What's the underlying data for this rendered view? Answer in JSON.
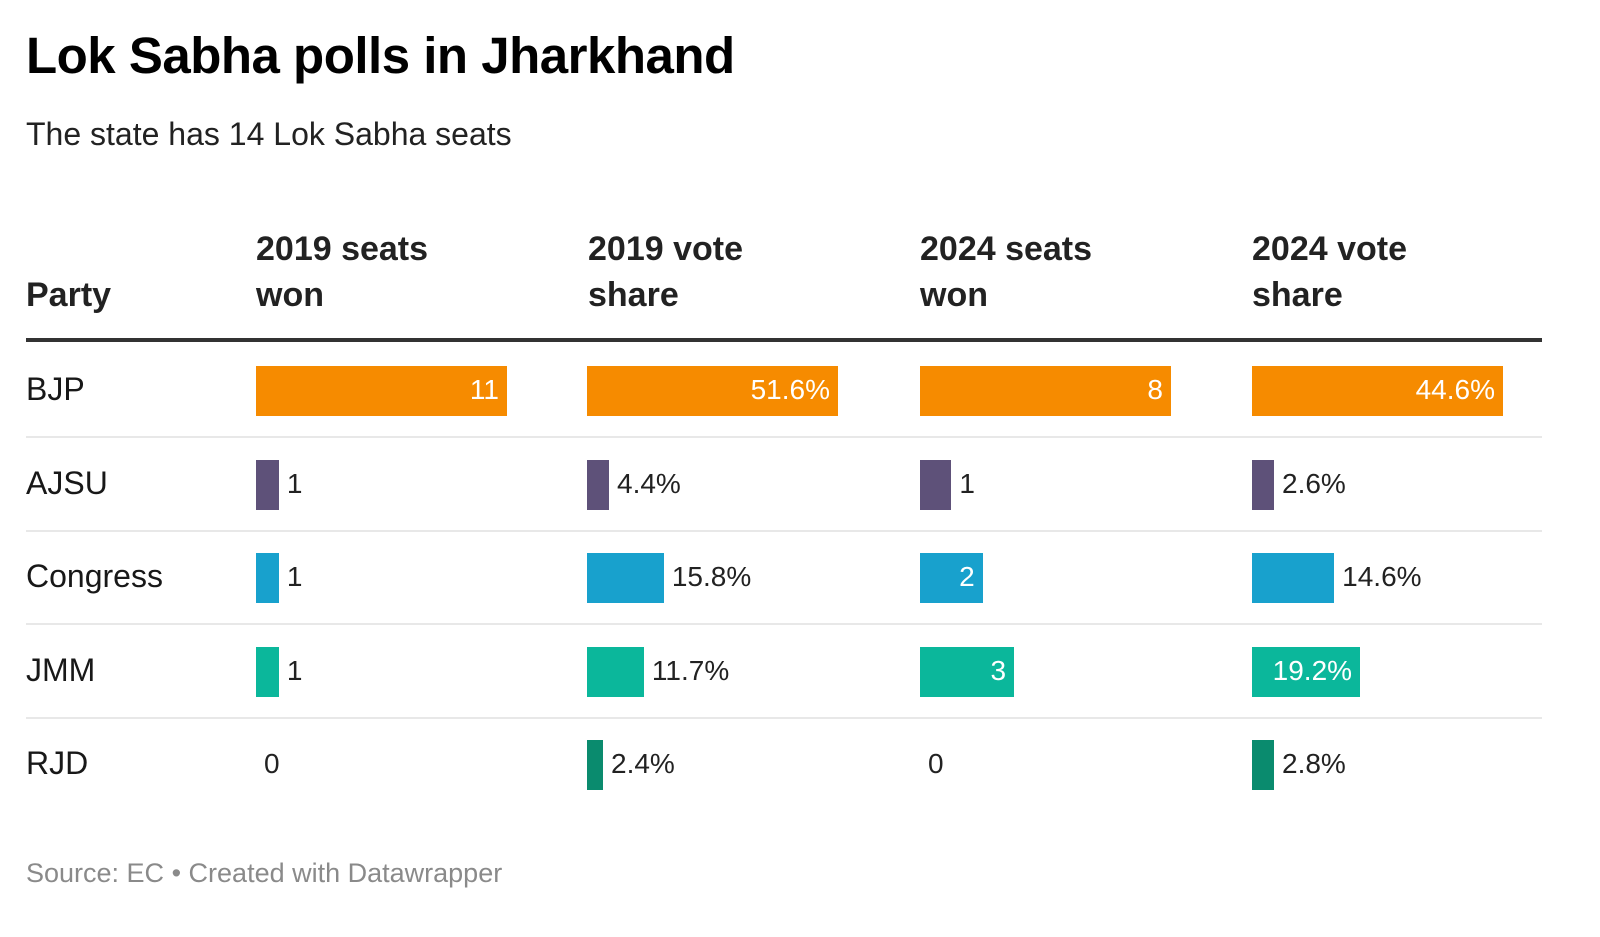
{
  "title": "Lok Sabha polls in Jharkhand",
  "subtitle": "The state has 14 Lok Sabha seats",
  "footer": {
    "source": "Source: EC",
    "separator": "•",
    "credit": "Created with Datawrapper"
  },
  "chart_data": {
    "type": "table",
    "title": "Lok Sabha polls in Jharkhand",
    "subtitle": "The state has 14 Lok Sabha seats",
    "columns": [
      {
        "key": "party",
        "label": "Party"
      },
      {
        "key": "seats2019",
        "label": "2019 seats won",
        "line1": "2019 seats",
        "line2": "won",
        "max": 11,
        "format": "int"
      },
      {
        "key": "vote2019",
        "label": "2019 vote share",
        "line1": "2019 vote",
        "line2": "share",
        "max": 51.6,
        "format": "pct"
      },
      {
        "key": "seats2024",
        "label": "2024 seats won",
        "line1": "2024 seats",
        "line2": "won",
        "max": 8,
        "format": "int"
      },
      {
        "key": "vote2024",
        "label": "2024 vote share",
        "line1": "2024 vote",
        "line2": "share",
        "max": 44.6,
        "format": "pct"
      }
    ],
    "rows": [
      {
        "party": "BJP",
        "color": "#f68b00",
        "seats2019": 11,
        "vote2019": 51.6,
        "seats2024": 8,
        "vote2024": 44.6,
        "labels": {
          "seats2019": "11",
          "vote2019": "51.6%",
          "seats2024": "8",
          "vote2024": "44.6%"
        }
      },
      {
        "party": "AJSU",
        "color": "#5e5179",
        "seats2019": 1,
        "vote2019": 4.4,
        "seats2024": 1,
        "vote2024": 2.6,
        "labels": {
          "seats2019": "1",
          "vote2019": "4.4%",
          "seats2024": "1",
          "vote2024": "2.6%"
        }
      },
      {
        "party": "Congress",
        "color": "#18a1cd",
        "seats2019": 1,
        "vote2019": 15.8,
        "seats2024": 2,
        "vote2024": 14.6,
        "labels": {
          "seats2019": "1",
          "vote2019": "15.8%",
          "seats2024": "2",
          "vote2024": "14.6%"
        }
      },
      {
        "party": "JMM",
        "color": "#0bb79b",
        "seats2019": 1,
        "vote2019": 11.7,
        "seats2024": 3,
        "vote2024": 19.2,
        "labels": {
          "seats2019": "1",
          "vote2019": "11.7%",
          "seats2024": "3",
          "vote2024": "19.2%"
        }
      },
      {
        "party": "RJD",
        "color": "#0a8b6e",
        "seats2019": 0,
        "vote2019": 2.4,
        "seats2024": 0,
        "vote2024": 2.8,
        "labels": {
          "seats2019": "0",
          "vote2019": "2.4%",
          "seats2024": "0",
          "vote2024": "2.8%"
        }
      }
    ]
  }
}
